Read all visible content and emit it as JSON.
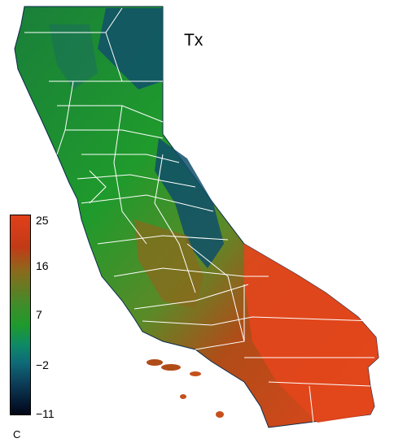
{
  "map": {
    "title": "Tx",
    "unit": "C",
    "colorbar_ticks": [
      "25",
      "16",
      "7",
      "−2",
      "−11"
    ],
    "colors": {
      "hot": "#e0401a",
      "warm": "#8a6a1c",
      "mild": "#1f9a2c",
      "cool": "#0e6a78",
      "cold": "#04122a",
      "boundary": "#ffffff"
    }
  }
}
